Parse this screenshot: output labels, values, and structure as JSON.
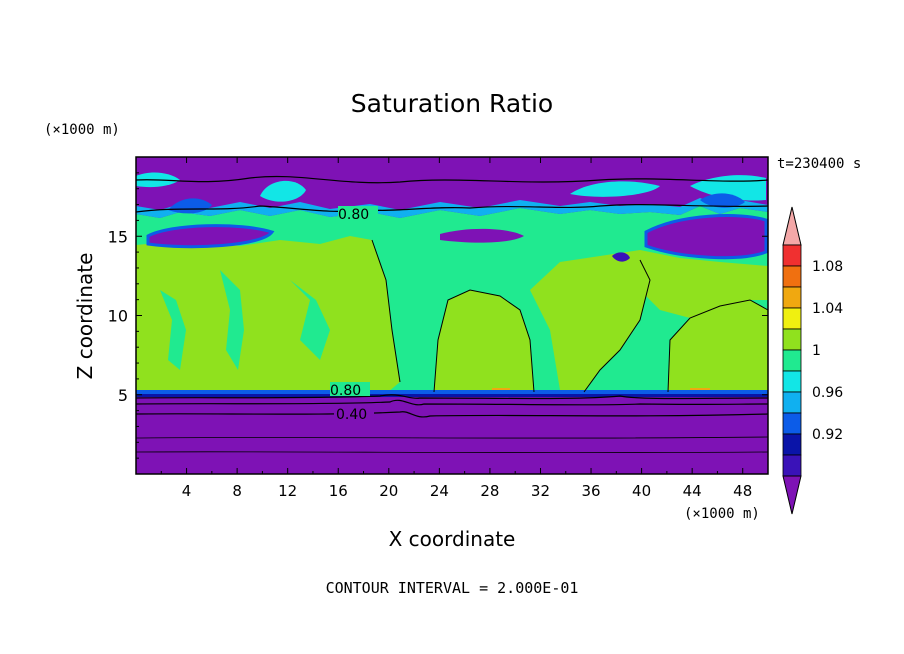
{
  "chart_data": {
    "type": "heatmap",
    "title": "Saturation Ratio",
    "xlabel": "X coordinate",
    "ylabel": "Z coordinate",
    "x_unit": "(×1000 m)",
    "y_unit": "(×1000 m)",
    "time_label": "t=230400 s",
    "footer": "CONTOUR INTERVAL = 2.000E-01",
    "xlim": [
      0,
      50
    ],
    "ylim": [
      0,
      20
    ],
    "x_ticks": [
      "4",
      "8",
      "12",
      "16",
      "20",
      "24",
      "28",
      "32",
      "36",
      "40",
      "44",
      "48"
    ],
    "y_ticks": [
      "5",
      "10",
      "15"
    ],
    "contour_labels": [
      "0.80",
      "0.80",
      "0.40"
    ],
    "colorbar": {
      "labels": [
        "0.92",
        "0.96",
        "1",
        "1.04",
        "1.08"
      ],
      "colors": [
        "#7e12b5",
        "#3a12b8",
        "#0a14a8",
        "#0c5ce8",
        "#10b0f0",
        "#12e6e6",
        "#20ea90",
        "#90e11e",
        "#f0f010",
        "#f0a810",
        "#f07010",
        "#f03030",
        "#f4a8a8"
      ]
    },
    "region_colors": {
      "dry": "#7e12b5",
      "near_saturated": "#20ea90",
      "saturated": "#90e11e",
      "supersaturated": "#f0a810"
    }
  }
}
